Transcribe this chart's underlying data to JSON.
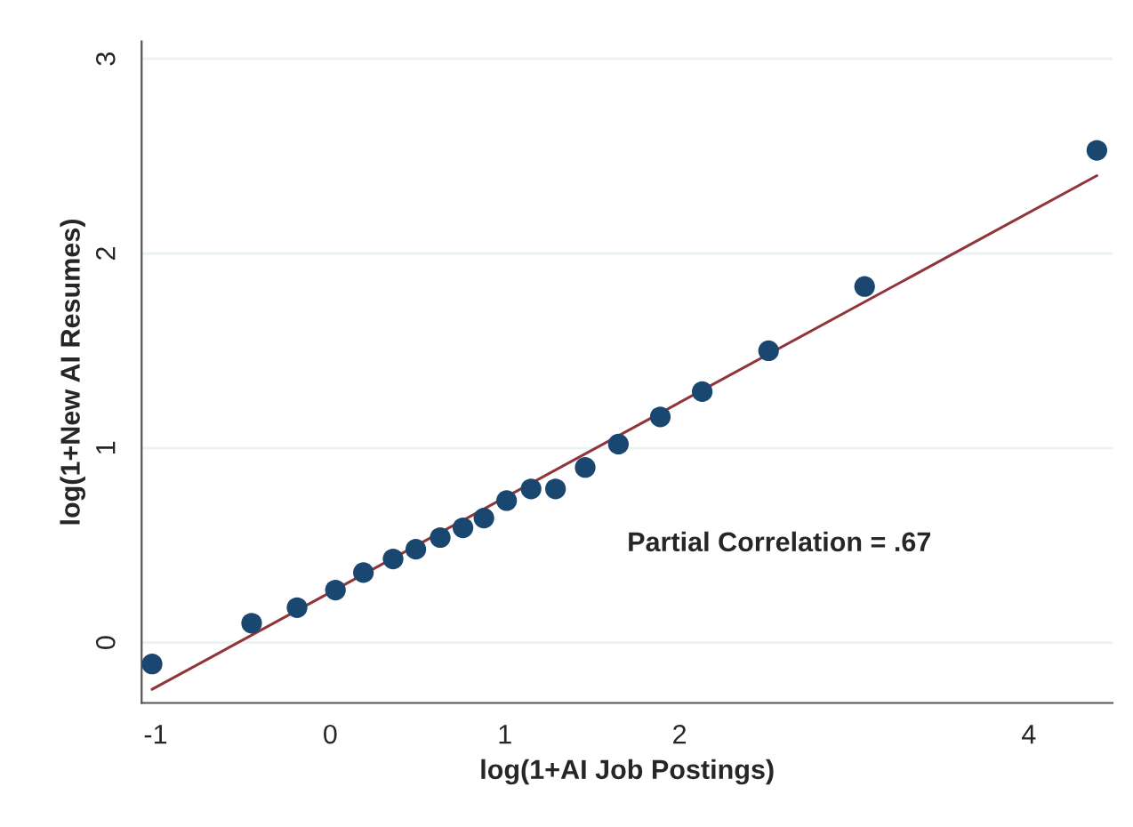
{
  "chart_data": {
    "type": "scatter",
    "xlabel": "log(1+AI Job Postings)",
    "ylabel": "log(1+New AI Resumes)",
    "annotations": [
      "Partial Correlation = .67"
    ],
    "series": [
      {
        "color": "#1a476f",
        "marker": "circle",
        "x": [
          -1.02,
          -0.45,
          -0.19,
          0.03,
          0.19,
          0.36,
          0.49,
          0.63,
          0.76,
          0.88,
          1.01,
          1.15,
          1.29,
          1.46,
          1.65,
          1.89,
          2.13,
          2.51,
          3.06,
          4.39
        ],
        "values": [
          -0.11,
          0.1,
          0.18,
          0.27,
          0.36,
          0.43,
          0.48,
          0.54,
          0.59,
          0.64,
          0.73,
          0.79,
          0.79,
          0.9,
          1.02,
          1.16,
          1.29,
          1.5,
          1.83,
          2.53
        ]
      },
      {
        "type": "line",
        "color": "#90353b",
        "marker": "none",
        "line_style": "solid",
        "x": [
          -1.02,
          4.39
        ],
        "values": [
          -0.24,
          2.4
        ]
      }
    ],
    "xlim": [
      -1.08,
      4.48
    ],
    "ylim": [
      -0.31,
      3.09
    ],
    "xticks": [
      -1,
      0,
      1,
      2,
      4
    ],
    "yticks": [
      0,
      1,
      2,
      3
    ],
    "grid": "y",
    "legend": false
  }
}
